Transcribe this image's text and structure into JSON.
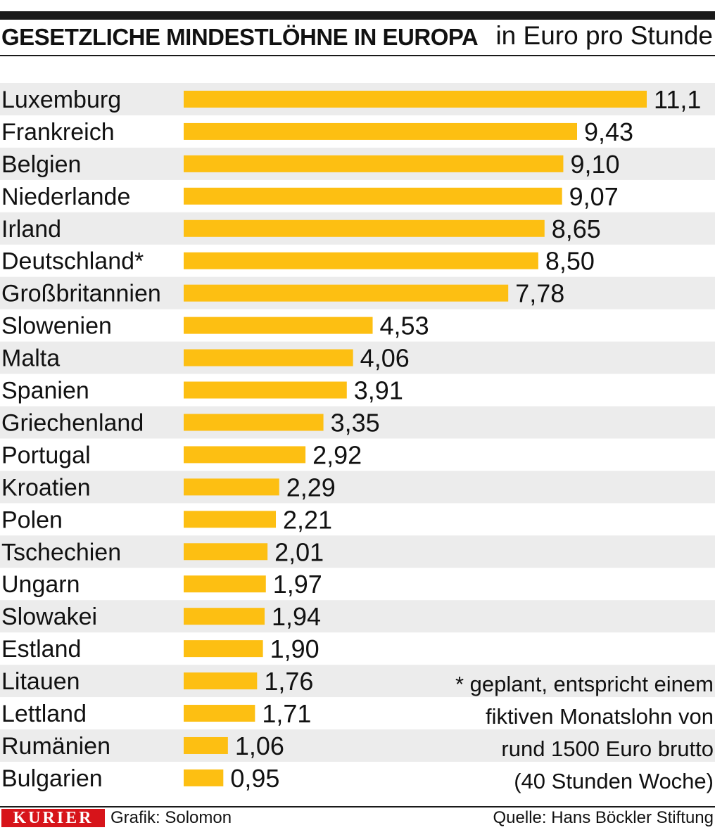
{
  "header": {
    "title": "GESETZLICHE MINDESTLÖHNE IN EUROPA",
    "unit": "in Euro pro Stunde"
  },
  "colors": {
    "bar": "#fdbf12",
    "row_stripe": "#ececec",
    "text": "#111111",
    "brand_red": "#d7141a"
  },
  "chart_data": {
    "type": "bar",
    "orientation": "horizontal",
    "title": "GESETZLICHE MINDESTLÖHNE IN EUROPA",
    "xlabel": "in Euro pro Stunde",
    "ylabel": "",
    "xlim": [
      0,
      11.1
    ],
    "grid": false,
    "categories": [
      "Luxemburg",
      "Frankreich",
      "Belgien",
      "Niederlande",
      "Irland",
      "Deutschland*",
      "Großbritannien",
      "Slowenien",
      "Malta",
      "Spanien",
      "Griechenland",
      "Portugal",
      "Kroatien",
      "Polen",
      "Tschechien",
      "Ungarn",
      "Slowakei",
      "Estland",
      "Litauen",
      "Lettland",
      "Rumänien",
      "Bulgarien"
    ],
    "values": [
      11.1,
      9.43,
      9.1,
      9.07,
      8.65,
      8.5,
      7.78,
      4.53,
      4.06,
      3.91,
      3.35,
      2.92,
      2.29,
      2.21,
      2.01,
      1.97,
      1.94,
      1.9,
      1.76,
      1.71,
      1.06,
      0.95
    ],
    "value_labels": [
      "11,1",
      "9,43",
      "9,10",
      "9,07",
      "8,65",
      "8,50",
      "7,78",
      "4,53",
      "4,06",
      "3,91",
      "3,35",
      "2,92",
      "2,29",
      "2,21",
      "2,01",
      "1,97",
      "1,94",
      "1,90",
      "1,76",
      "1,71",
      "1,06",
      "0,95"
    ]
  },
  "footnote": {
    "lines": [
      "* geplant, entspricht einem",
      "fiktiven Monatslohn von",
      "rund 1500 Euro brutto",
      "(40 Stunden Woche)"
    ]
  },
  "footer": {
    "brand": "KURIER",
    "credit": "Grafik: Solomon",
    "source": "Quelle: Hans Böckler Stiftung"
  }
}
